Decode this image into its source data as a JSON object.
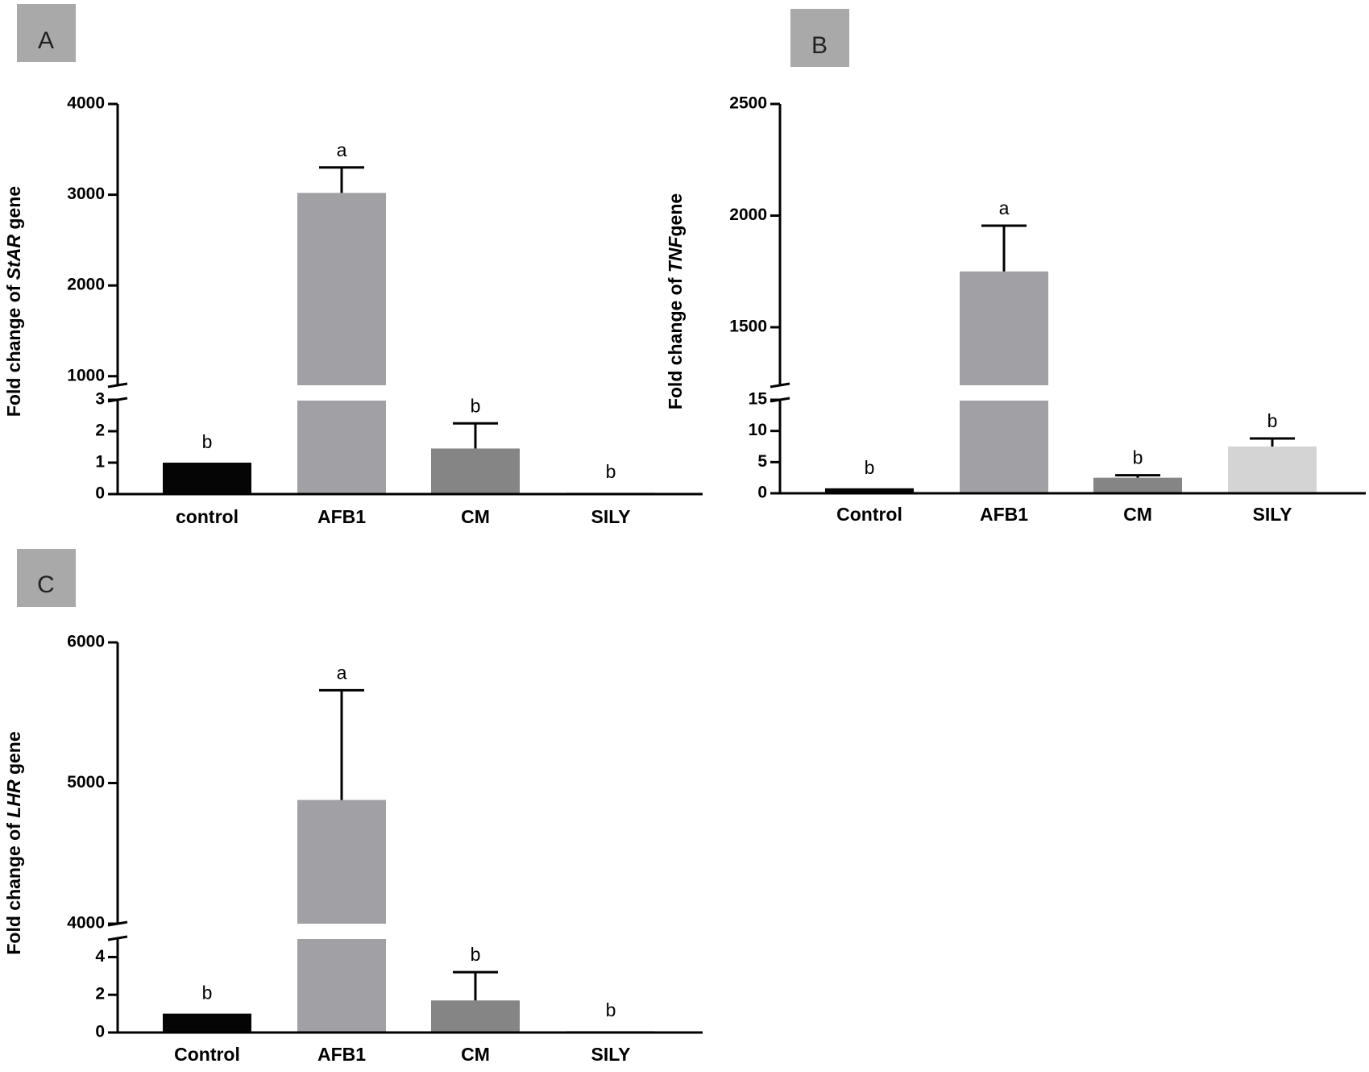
{
  "chart_data": [
    {
      "type": "bar",
      "panel": "A",
      "ylabel_parts": [
        "Fold change of ",
        "StAR",
        " gene"
      ],
      "categories": [
        "control",
        "AFB1",
        "CM",
        "SILY"
      ],
      "values": [
        1,
        3020,
        1.45,
        0.05
      ],
      "errors": [
        0,
        280,
        0.8,
        0
      ],
      "letters": [
        "b",
        "a",
        "b",
        "b"
      ],
      "colors": [
        "#050505",
        "#a1a1a5",
        "#858585",
        "#cfcfcf"
      ],
      "y_lower_range": [
        0,
        3
      ],
      "y_lower_ticks": [
        "0",
        "1",
        "2",
        "3"
      ],
      "y_upper_range": [
        900,
        4000
      ],
      "y_upper_ticks": [
        "1000",
        "2000",
        "3000",
        "4000"
      ],
      "y_upper_tick_values": [
        1000,
        2000,
        3000,
        4000
      ]
    },
    {
      "type": "bar",
      "panel": "B",
      "ylabel_parts": [
        "Fold change of ",
        "TNF",
        "gene"
      ],
      "categories": [
        "Control",
        "AFB1",
        "CM",
        "SILY"
      ],
      "values": [
        0.8,
        1750,
        2.5,
        7.5
      ],
      "errors": [
        0,
        205,
        0.4,
        1.3
      ],
      "letters": [
        "b",
        "a",
        "b",
        "b"
      ],
      "colors": [
        "#050505",
        "#a1a1a5",
        "#858585",
        "#d4d4d4"
      ],
      "y_lower_range": [
        0,
        15
      ],
      "y_lower_ticks": [
        "0",
        "5",
        "10",
        "15"
      ],
      "y_upper_range": [
        1240,
        2500
      ],
      "y_upper_ticks": [
        "1500",
        "2000",
        "2500"
      ],
      "y_upper_tick_values": [
        1500,
        2000,
        2500
      ]
    },
    {
      "type": "bar",
      "panel": "C",
      "ylabel_parts": [
        "Fold change of ",
        "LHR",
        " gene"
      ],
      "categories": [
        "Control",
        "AFB1",
        "CM",
        "SILY"
      ],
      "values": [
        1,
        4880,
        1.7,
        0
      ],
      "errors": [
        0,
        780,
        1.5,
        0
      ],
      "letters": [
        "b",
        "a",
        "b",
        "b"
      ],
      "colors": [
        "#050505",
        "#a1a1a5",
        "#858585",
        "#cfcfcf"
      ],
      "y_lower_range": [
        0,
        5
      ],
      "y_lower_ticks": [
        "0",
        "2",
        "4"
      ],
      "y_upper_range": [
        4000,
        6000
      ],
      "y_upper_ticks": [
        "4000",
        "5000",
        "6000"
      ],
      "y_upper_tick_values": [
        4000,
        5000,
        6000
      ]
    }
  ]
}
